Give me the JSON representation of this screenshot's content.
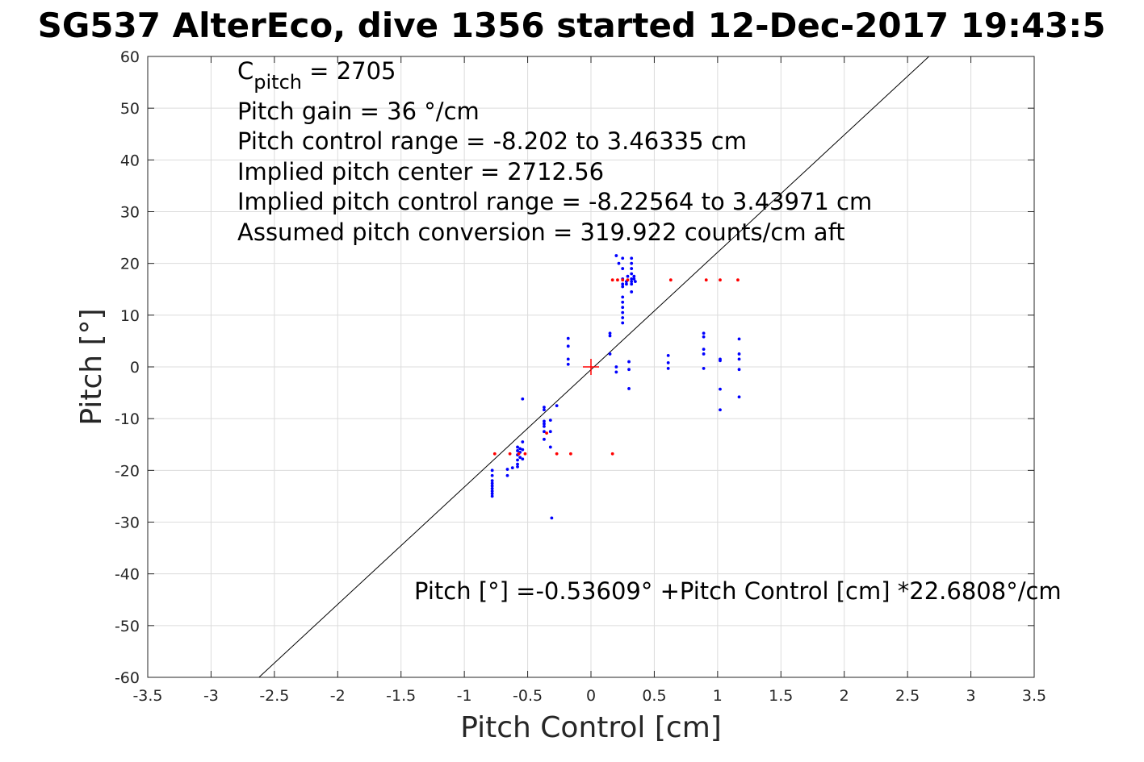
{
  "chart_data": {
    "type": "scatter",
    "title": "SG537 AlterEco, dive 1356 started 12-Dec-2017 19:43:5",
    "xlabel": "Pitch Control [cm]",
    "ylabel": "Pitch [°]",
    "xlim": [
      -3.5,
      3.5
    ],
    "ylim": [
      -60,
      60
    ],
    "xticks": [
      -3.5,
      -3,
      -2.5,
      -2,
      -1.5,
      -1,
      -0.5,
      0,
      0.5,
      1,
      1.5,
      2,
      2.5,
      3,
      3.5
    ],
    "yticks": [
      60,
      50,
      40,
      30,
      20,
      10,
      0,
      -10,
      -20,
      -30,
      -40,
      -50,
      -60
    ],
    "grid": true,
    "legend": "none",
    "annotations": {
      "cpitch_base": "C",
      "cpitch_sub": "pitch",
      "cpitch_rest": " = 2705",
      "lines": [
        "Pitch gain = 36 °/cm",
        "Pitch control range = -8.202 to 3.46335 cm",
        "Implied pitch center = 2712.56",
        "Implied pitch control range = -8.22564 to 3.43971 cm",
        "Assumed pitch conversion = 319.922 counts/cm aft"
      ],
      "fit_equation": "Pitch [°] =-0.53609° +Pitch Control [cm] *22.6808°/cm"
    },
    "fit_line": {
      "intercept": -0.53609,
      "slope": 22.6808,
      "color": "#000000"
    },
    "center_marker": {
      "x": 0,
      "y": 0,
      "color": "#ff0000"
    },
    "series": [
      {
        "color": "#0000ff",
        "points": [
          [
            -0.78,
            -20
          ],
          [
            -0.78,
            -21
          ],
          [
            -0.78,
            -22
          ],
          [
            -0.78,
            -22.5
          ],
          [
            -0.78,
            -23
          ],
          [
            -0.78,
            -23.5
          ],
          [
            -0.78,
            -24
          ],
          [
            -0.78,
            -24.5
          ],
          [
            -0.78,
            -25
          ],
          [
            -0.66,
            -19.8
          ],
          [
            -0.66,
            -21
          ],
          [
            -0.62,
            -19.5
          ],
          [
            -0.58,
            -15.5
          ],
          [
            -0.58,
            -16.2
          ],
          [
            -0.58,
            -17
          ],
          [
            -0.58,
            -18
          ],
          [
            -0.58,
            -18.8
          ],
          [
            -0.58,
            -19.3
          ],
          [
            -0.56,
            -15.8
          ],
          [
            -0.56,
            -16.5
          ],
          [
            -0.56,
            -17.5
          ],
          [
            -0.54,
            -6.2
          ],
          [
            -0.54,
            -14.5
          ],
          [
            -0.54,
            -16
          ],
          [
            -0.54,
            -17.8
          ],
          [
            -0.37,
            -7.8
          ],
          [
            -0.37,
            -8.3
          ],
          [
            -0.37,
            -10.5
          ],
          [
            -0.37,
            -11
          ],
          [
            -0.37,
            -11.5
          ],
          [
            -0.37,
            -12.5
          ],
          [
            -0.37,
            -14
          ],
          [
            -0.32,
            -10.3
          ],
          [
            -0.32,
            -12.5
          ],
          [
            -0.32,
            -15.5
          ],
          [
            -0.31,
            -29.2
          ],
          [
            -0.27,
            -7.5
          ],
          [
            -0.18,
            5.5
          ],
          [
            -0.18,
            4
          ],
          [
            -0.18,
            1.5
          ],
          [
            -0.18,
            0.5
          ],
          [
            0.15,
            6.5
          ],
          [
            0.15,
            6
          ],
          [
            0.15,
            2.5
          ],
          [
            0.2,
            21.5
          ],
          [
            0.2,
            0
          ],
          [
            0.2,
            -1
          ],
          [
            0.22,
            20
          ],
          [
            0.25,
            21
          ],
          [
            0.25,
            19
          ],
          [
            0.25,
            17
          ],
          [
            0.25,
            16
          ],
          [
            0.25,
            15.5
          ],
          [
            0.25,
            13.5
          ],
          [
            0.25,
            12.5
          ],
          [
            0.25,
            11.5
          ],
          [
            0.25,
            10.5
          ],
          [
            0.25,
            9.5
          ],
          [
            0.25,
            8.5
          ],
          [
            0.28,
            16.5
          ],
          [
            0.28,
            16
          ],
          [
            0.29,
            17.5
          ],
          [
            0.3,
            1
          ],
          [
            0.3,
            -0.5
          ],
          [
            0.3,
            -4.2
          ],
          [
            0.32,
            21
          ],
          [
            0.32,
            20
          ],
          [
            0.32,
            19
          ],
          [
            0.32,
            18
          ],
          [
            0.32,
            17
          ],
          [
            0.32,
            16.5
          ],
          [
            0.32,
            16
          ],
          [
            0.32,
            14.5
          ],
          [
            0.34,
            17.5
          ],
          [
            0.34,
            17
          ],
          [
            0.35,
            16.5
          ],
          [
            0.61,
            2.2
          ],
          [
            0.61,
            0.8
          ],
          [
            0.61,
            -0.3
          ],
          [
            0.89,
            6.5
          ],
          [
            0.89,
            5.8
          ],
          [
            0.89,
            3.4
          ],
          [
            0.89,
            2.5
          ],
          [
            0.89,
            -0.3
          ],
          [
            1.02,
            1.5
          ],
          [
            1.02,
            1.2
          ],
          [
            1.02,
            -4.3
          ],
          [
            1.02,
            -8.3
          ],
          [
            1.17,
            5.4
          ],
          [
            1.17,
            2.5
          ],
          [
            1.17,
            1.5
          ],
          [
            1.17,
            -0.5
          ],
          [
            1.17,
            -5.8
          ]
        ]
      },
      {
        "color": "#ff0000",
        "points": [
          [
            -0.76,
            -16.8
          ],
          [
            -0.64,
            -16.8
          ],
          [
            -0.57,
            -16.8
          ],
          [
            -0.52,
            -16.8
          ],
          [
            -0.35,
            -12.8
          ],
          [
            -0.27,
            -16.8
          ],
          [
            -0.16,
            -16.8
          ],
          [
            0.17,
            -16.8
          ],
          [
            0.17,
            16.8
          ],
          [
            0.21,
            16.8
          ],
          [
            0.25,
            16.8
          ],
          [
            0.29,
            16.8
          ],
          [
            0.63,
            16.8
          ],
          [
            0.91,
            16.8
          ],
          [
            1.02,
            16.8
          ],
          [
            1.16,
            16.8
          ]
        ]
      }
    ]
  }
}
